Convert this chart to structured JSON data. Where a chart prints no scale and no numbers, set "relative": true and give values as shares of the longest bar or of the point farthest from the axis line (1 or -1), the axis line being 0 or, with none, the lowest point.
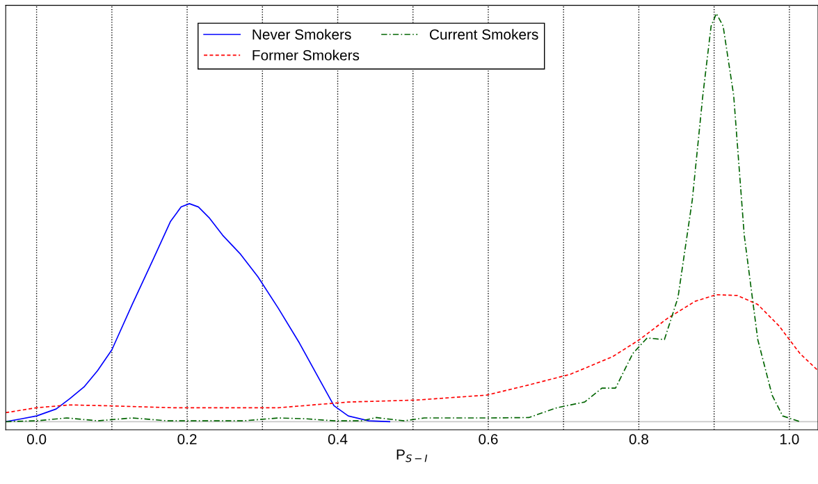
{
  "chart_data": {
    "type": "line",
    "relative": true,
    "xlabel": "P$_{S−I}$",
    "xlim": [
      -0.041,
      1.038
    ],
    "xticks": [
      {
        "value": 0.0,
        "label": "0.0"
      },
      {
        "value": 0.1,
        "label": null
      },
      {
        "value": 0.2,
        "label": "0.2"
      },
      {
        "value": 0.3,
        "label": null
      },
      {
        "value": 0.4,
        "label": "0.4"
      },
      {
        "value": 0.5,
        "label": null
      },
      {
        "value": 0.6,
        "label": "0.6"
      },
      {
        "value": 0.7,
        "label": null
      },
      {
        "value": 0.8,
        "label": "0.8"
      },
      {
        "value": 0.9,
        "label": null
      },
      {
        "value": 1.0,
        "label": "1.0"
      }
    ],
    "grid": "x",
    "legend": "top",
    "marker": "none",
    "series": [
      {
        "name": "Never Smokers",
        "color": "#0000ff",
        "line_style": "solid",
        "x": [
          -0.041,
          -0.02,
          0,
          0.026,
          0.044,
          0.063,
          0.081,
          0.1,
          0.127,
          0.155,
          0.178,
          0.192,
          0.203,
          0.215,
          0.229,
          0.247,
          0.271,
          0.294,
          0.321,
          0.349,
          0.377,
          0.395,
          0.414,
          0.441,
          0.469
        ],
        "values": [
          0,
          0.007,
          0.014,
          0.031,
          0.056,
          0.085,
          0.125,
          0.176,
          0.287,
          0.398,
          0.491,
          0.526,
          0.534,
          0.526,
          0.5,
          0.457,
          0.41,
          0.355,
          0.278,
          0.193,
          0.099,
          0.039,
          0.014,
          0.002,
          0
        ]
      },
      {
        "name": "Former Smokers",
        "color": "#ff0000",
        "line_style": "dashed",
        "x": [
          -0.041,
          0,
          0.044,
          0.09,
          0.183,
          0.321,
          0.414,
          0.506,
          0.598,
          0.654,
          0.709,
          0.765,
          0.801,
          0.838,
          0.875,
          0.903,
          0.931,
          0.958,
          0.986,
          1.014,
          1.038
        ],
        "values": [
          0.022,
          0.034,
          0.041,
          0.039,
          0.034,
          0.034,
          0.048,
          0.053,
          0.065,
          0.09,
          0.116,
          0.159,
          0.201,
          0.253,
          0.295,
          0.311,
          0.309,
          0.287,
          0.235,
          0.167,
          0.125
        ]
      },
      {
        "name": "Current Smokers",
        "color": "#006400",
        "line_style": "dashdot",
        "x": [
          -0.041,
          0,
          0.04,
          0.081,
          0.127,
          0.174,
          0.275,
          0.321,
          0.358,
          0.395,
          0.432,
          0.451,
          0.488,
          0.515,
          0.561,
          0.598,
          0.654,
          0.691,
          0.728,
          0.751,
          0.769,
          0.792,
          0.811,
          0.834,
          0.852,
          0.871,
          0.885,
          0.896,
          0.903,
          0.912,
          0.926,
          0.94,
          0.958,
          0.977,
          0.991,
          1.014
        ],
        "values": [
          0,
          0.002,
          0.009,
          0.002,
          0.009,
          0.002,
          0.002,
          0.009,
          0.007,
          0.002,
          0.002,
          0.01,
          0.002,
          0.009,
          0.009,
          0.009,
          0.01,
          0.034,
          0.048,
          0.082,
          0.082,
          0.167,
          0.205,
          0.201,
          0.304,
          0.543,
          0.799,
          0.969,
          1.0,
          0.969,
          0.799,
          0.457,
          0.201,
          0.065,
          0.014,
          0
        ]
      }
    ]
  }
}
